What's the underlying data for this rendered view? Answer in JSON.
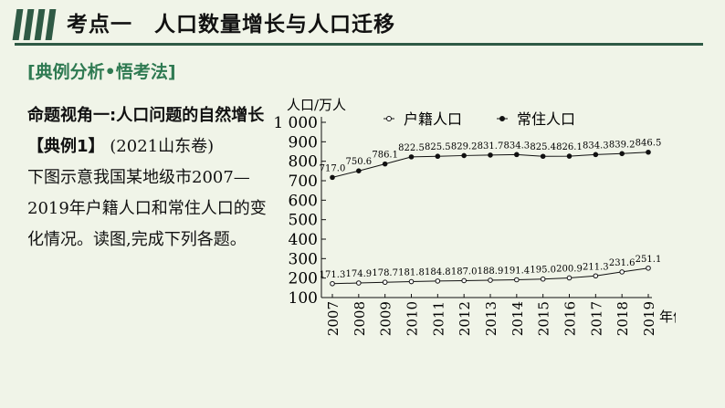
{
  "header": {
    "title": "考点一　人口数量增长与人口迁移"
  },
  "section_tag": "[典例分析•悟考法]",
  "body": {
    "perspective": "命题视角一:人口问题的自然增长",
    "example_label": "【典例1】",
    "example_source": "(2021山东卷)",
    "question": "下图示意我国某地级市2007—2019年户籍人口和常住人口的变化情况。读图,完成下列各题。"
  },
  "chart_data": {
    "type": "line",
    "ylabel": "人口/万人",
    "xlabel": "年份",
    "ylim": [
      100,
      1000
    ],
    "yticks": [
      "100",
      "200",
      "300",
      "400",
      "500",
      "600",
      "700",
      "800",
      "900",
      "1 000"
    ],
    "categories": [
      "2007",
      "2008",
      "2009",
      "2010",
      "2011",
      "2012",
      "2013",
      "2014",
      "2015",
      "2016",
      "2017",
      "2018",
      "2019"
    ],
    "series": [
      {
        "name": "户籍人口",
        "marker": "open-circle",
        "values": [
          171.3,
          174.9,
          178.7,
          181.8,
          184.8,
          187.0,
          188.9,
          191.4,
          195.0,
          200.9,
          211.3,
          231.6,
          251.1
        ],
        "labels": [
          "171.3",
          "174.9",
          "178.7",
          "181.8",
          "184.8",
          "187.0",
          "188.9",
          "191.4",
          "195.0",
          "200.9",
          "211.3",
          "231.6",
          "251.1"
        ]
      },
      {
        "name": "常住人口",
        "marker": "filled-circle",
        "values": [
          717.0,
          750.6,
          786.1,
          822.5,
          825.5,
          829.2,
          831.7,
          834.3,
          825.4,
          826.1,
          834.3,
          839.2,
          846.5
        ],
        "labels": [
          "717.0",
          "750.6",
          "786.1",
          "822.5",
          "825.5",
          "829.2",
          "831.7",
          "834.3",
          "825.4",
          "826.1",
          "834.3",
          "839.2",
          "846.5"
        ]
      }
    ],
    "grid": false,
    "legend_position": "top"
  }
}
